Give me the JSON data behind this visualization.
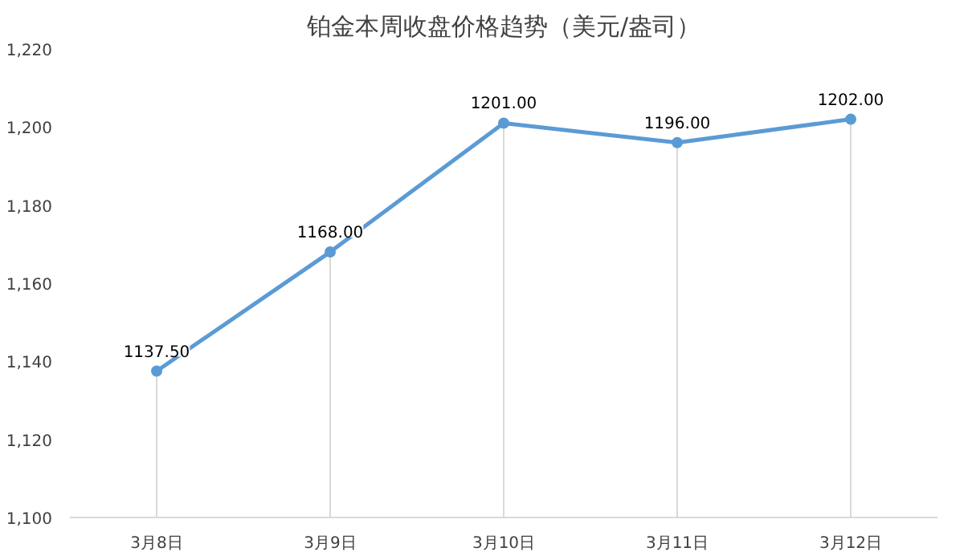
{
  "chart_data": {
    "type": "line",
    "title": "铂金本周收盘价格趋势（美元/盎司）",
    "categories": [
      "3月8日",
      "3月9日",
      "3月10日",
      "3月11日",
      "3月12日"
    ],
    "values": [
      1137.5,
      1168,
      1201,
      1196,
      1202
    ],
    "value_labels": [
      "1137.50",
      "1168.00",
      "1201.00",
      "1196.00",
      "1202.00"
    ],
    "color": "#5b9bd5",
    "marker": "circle",
    "line_style": "solid",
    "grid": "x",
    "ylim": [
      1100,
      1220
    ],
    "yticks": [
      {
        "value": 1100,
        "label": "1,100"
      },
      {
        "value": 1120,
        "label": "1,120"
      },
      {
        "value": 1140,
        "label": "1,140"
      },
      {
        "value": 1160,
        "label": "1,160"
      },
      {
        "value": 1180,
        "label": "1,180"
      },
      {
        "value": 1200,
        "label": "1,200"
      },
      {
        "value": 1220,
        "label": "1,220"
      }
    ]
  }
}
